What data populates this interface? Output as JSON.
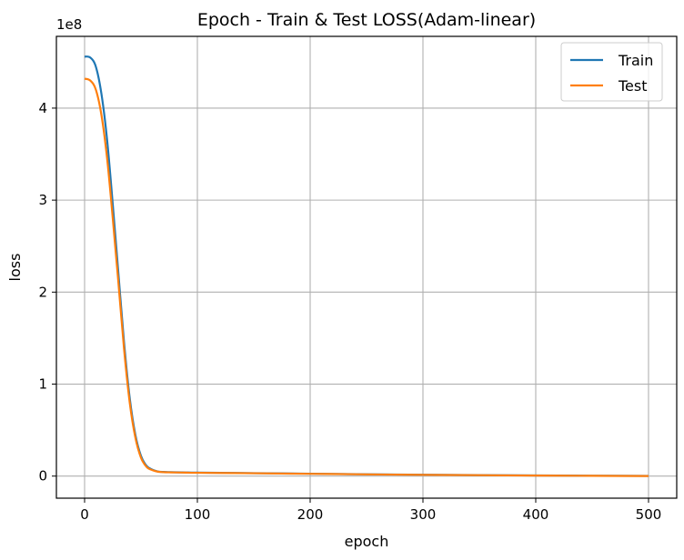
{
  "chart_data": {
    "type": "line",
    "title": "Epoch - Train & Test LOSS(Adam-linear)",
    "xlabel": "epoch",
    "ylabel": "loss",
    "y_offset_label": "1e8",
    "xlim": [
      -25,
      525
    ],
    "ylim": [
      -0.24,
      4.78
    ],
    "x_ticks": [
      0,
      100,
      200,
      300,
      400,
      500
    ],
    "y_ticks": [
      0,
      1,
      2,
      3,
      4
    ],
    "x_tick_labels": [
      "0",
      "100",
      "200",
      "300",
      "400",
      "500"
    ],
    "y_tick_labels": [
      "0",
      "1",
      "2",
      "3",
      "4"
    ],
    "grid": true,
    "legend_position": "top-right",
    "series": [
      {
        "name": "Train",
        "color": "#1f77b4",
        "x": [
          0,
          5,
          10,
          15,
          20,
          25,
          30,
          35,
          40,
          45,
          50,
          55,
          60,
          65,
          70,
          75,
          80,
          90,
          100,
          150,
          200,
          250,
          300,
          350,
          400,
          450,
          500
        ],
        "values": [
          4.56,
          4.55,
          4.45,
          4.15,
          3.65,
          2.95,
          2.2,
          1.45,
          0.85,
          0.45,
          0.22,
          0.11,
          0.07,
          0.05,
          0.045,
          0.043,
          0.042,
          0.04,
          0.038,
          0.032,
          0.026,
          0.02,
          0.015,
          0.011,
          0.007,
          0.004,
          0.002
        ]
      },
      {
        "name": "Test",
        "color": "#ff7f0e",
        "x": [
          0,
          5,
          10,
          15,
          20,
          25,
          30,
          35,
          40,
          45,
          50,
          55,
          60,
          65,
          70,
          75,
          80,
          90,
          100,
          150,
          200,
          250,
          300,
          350,
          400,
          450,
          500
        ],
        "values": [
          4.32,
          4.3,
          4.2,
          3.92,
          3.45,
          2.8,
          2.1,
          1.38,
          0.8,
          0.42,
          0.2,
          0.1,
          0.065,
          0.048,
          0.043,
          0.041,
          0.04,
          0.038,
          0.036,
          0.031,
          0.025,
          0.019,
          0.014,
          0.01,
          0.006,
          0.003,
          0.001
        ]
      }
    ]
  }
}
